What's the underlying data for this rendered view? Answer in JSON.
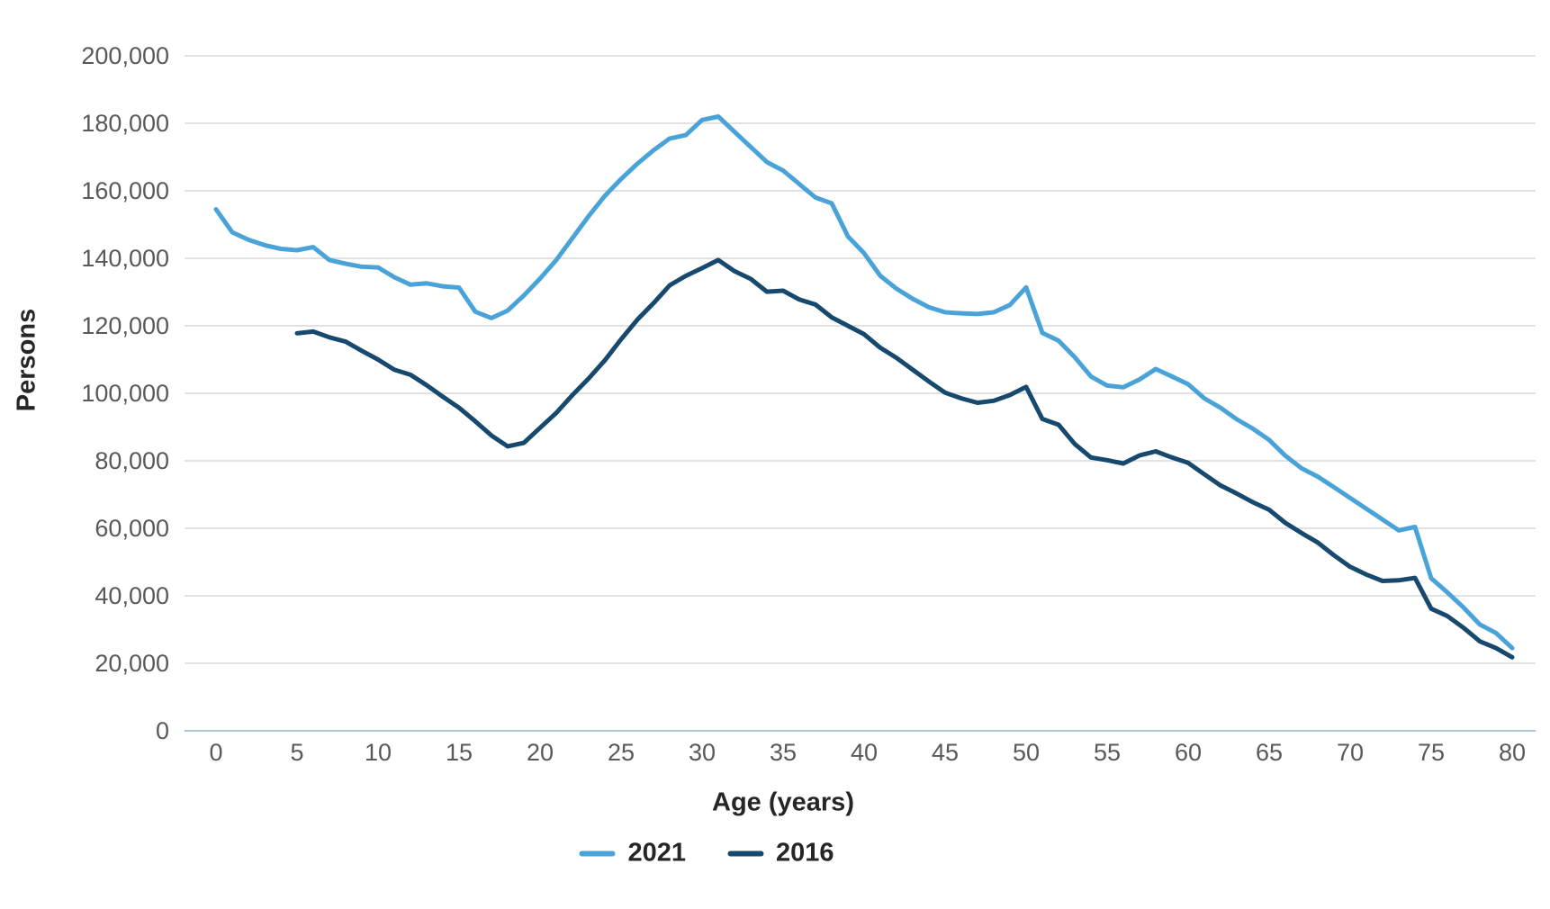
{
  "chart_data": {
    "type": "line",
    "title": "",
    "xlabel": "Age (years)",
    "ylabel": "Persons",
    "x_ticks": [
      0,
      5,
      10,
      15,
      20,
      25,
      30,
      35,
      40,
      45,
      50,
      55,
      60,
      65,
      70,
      75,
      80
    ],
    "y_ticks": [
      0,
      20000,
      40000,
      60000,
      80000,
      100000,
      120000,
      140000,
      160000,
      180000,
      200000
    ],
    "y_tick_labels": [
      "0",
      "20,000",
      "40,000",
      "60,000",
      "80,000",
      "100,000",
      "120,000",
      "140,000",
      "160,000",
      "180,000",
      "200,000"
    ],
    "xlim": [
      0,
      80
    ],
    "ylim": [
      0,
      200000
    ],
    "grid": "horizontal",
    "gridline_color": "#d9d9d9",
    "zero_line_color": "#aac7dd",
    "tick_label_color": "#595959",
    "legend_position": "bottom-center",
    "series": [
      {
        "name": "2021",
        "color": "#4AA3D8",
        "start_age": 0,
        "values": [
          154500,
          147700,
          145500,
          143900,
          142800,
          142400,
          143300,
          139500,
          138400,
          137500,
          137300,
          134400,
          132200,
          132600,
          131700,
          131300,
          124200,
          122300,
          124500,
          129000,
          134000,
          139500,
          146000,
          152500,
          158500,
          163500,
          168000,
          172000,
          175500,
          176500,
          181000,
          182000,
          177500,
          173000,
          168500,
          166000,
          162000,
          158000,
          156300,
          146500,
          141500,
          134800,
          131000,
          128000,
          125500,
          124000,
          123700,
          123500,
          124000,
          126200,
          131400,
          117900,
          115600,
          110700,
          105000,
          102300,
          101800,
          104100,
          107200,
          105000,
          102700,
          98500,
          95700,
          92300,
          89500,
          86200,
          81500,
          77800,
          75300,
          72200,
          69000,
          65800,
          62600,
          59400,
          60400,
          45200,
          41000,
          36500,
          31500,
          29000,
          24500
        ]
      },
      {
        "name": "2016",
        "color": "#17496E",
        "start_age": 5,
        "values": [
          117800,
          118300,
          116600,
          115300,
          112600,
          110000,
          107000,
          105500,
          102400,
          99000,
          95700,
          91700,
          87500,
          84300,
          85300,
          89800,
          94200,
          99500,
          104400,
          109800,
          116000,
          121800,
          126700,
          132000,
          134800,
          137100,
          139500,
          136200,
          133900,
          130100,
          130400,
          127800,
          126300,
          122500,
          120000,
          117500,
          113500,
          110500,
          107000,
          103500,
          100200,
          98500,
          97200,
          97800,
          99500,
          101900,
          92400,
          90700,
          85000,
          81000,
          80200,
          79200,
          81600,
          82800,
          81000,
          79400,
          76000,
          72700,
          70300,
          67700,
          65500,
          61600,
          58600,
          55800,
          52000,
          48600,
          46300,
          44400,
          44600,
          45300,
          36200,
          34000,
          30500,
          26500,
          24500,
          21800
        ]
      }
    ]
  }
}
